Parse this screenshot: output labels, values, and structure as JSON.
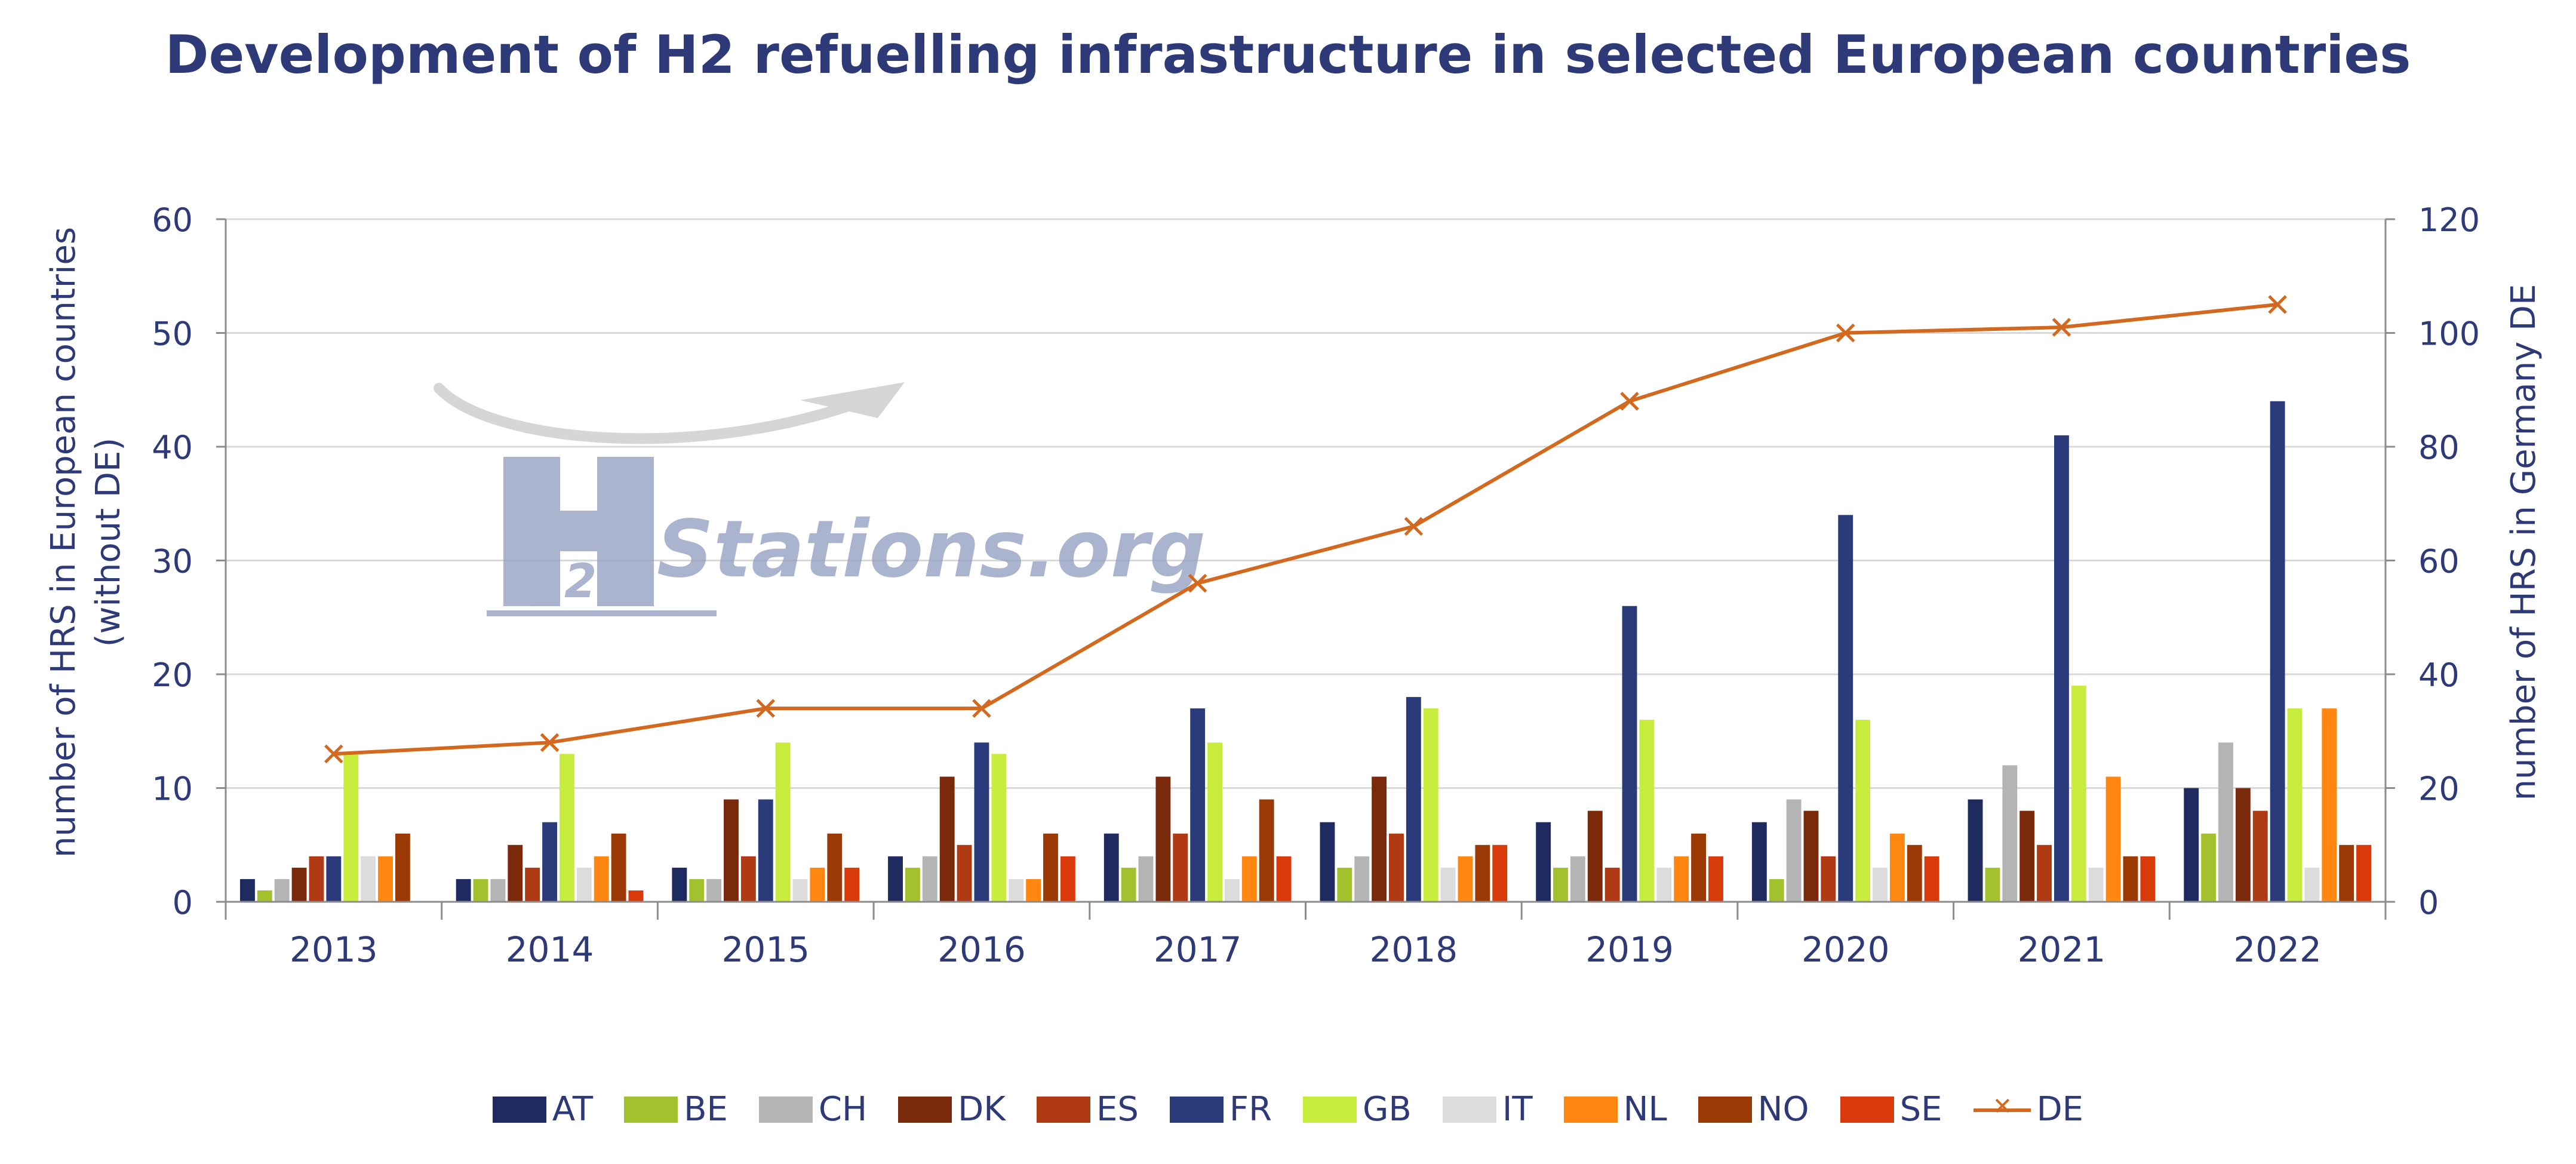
{
  "chart_data": {
    "type": "bar",
    "title": "Development of H2 refuelling infrastructure in selected European countries",
    "categories": [
      "2013",
      "2014",
      "2015",
      "2016",
      "2017",
      "2018",
      "2019",
      "2020",
      "2021",
      "2022"
    ],
    "ylabel_left_line1": "number of HRS in European countries",
    "ylabel_left_line2": "(without DE)",
    "ylabel_right": "number of HRS in Germany DE",
    "ylim_left": [
      0,
      60
    ],
    "ylim_right": [
      0,
      120
    ],
    "yticks_left": [
      0,
      10,
      20,
      30,
      40,
      50,
      60
    ],
    "yticks_right": [
      0,
      20,
      40,
      60,
      80,
      100,
      120
    ],
    "grid": true,
    "legend_position": "bottom",
    "series": [
      {
        "name": "AT",
        "color": "#1f2a60",
        "values": [
          2,
          2,
          3,
          4,
          6,
          7,
          7,
          7,
          9,
          10
        ]
      },
      {
        "name": "BE",
        "color": "#a3c12c",
        "values": [
          1,
          2,
          2,
          3,
          3,
          3,
          3,
          2,
          3,
          6
        ]
      },
      {
        "name": "CH",
        "color": "#b4b4b4",
        "values": [
          2,
          2,
          2,
          4,
          4,
          4,
          4,
          9,
          12,
          14
        ]
      },
      {
        "name": "DK",
        "color": "#7a2a0a",
        "values": [
          3,
          5,
          9,
          11,
          11,
          11,
          8,
          8,
          8,
          10
        ]
      },
      {
        "name": "ES",
        "color": "#b03a14",
        "values": [
          4,
          3,
          4,
          5,
          6,
          6,
          3,
          4,
          5,
          8
        ]
      },
      {
        "name": "FR",
        "color": "#2b3a7a",
        "values": [
          4,
          7,
          9,
          14,
          17,
          18,
          26,
          34,
          41,
          44
        ]
      },
      {
        "name": "GB",
        "color": "#c8ec3c",
        "values": [
          13,
          13,
          14,
          13,
          14,
          17,
          16,
          16,
          19,
          17
        ]
      },
      {
        "name": "IT",
        "color": "#dcdcdc",
        "values": [
          4,
          3,
          2,
          2,
          2,
          3,
          3,
          3,
          3,
          3
        ]
      },
      {
        "name": "NL",
        "color": "#ff8610",
        "values": [
          4,
          4,
          3,
          2,
          4,
          4,
          4,
          6,
          11,
          17
        ]
      },
      {
        "name": "NO",
        "color": "#9c3a06",
        "values": [
          6,
          6,
          6,
          6,
          9,
          5,
          6,
          5,
          4,
          5
        ]
      },
      {
        "name": "SE",
        "color": "#d83a0c",
        "values": [
          0,
          1,
          3,
          4,
          4,
          5,
          4,
          4,
          4,
          5
        ]
      },
      {
        "name": "DE",
        "type": "line",
        "axis": "right",
        "color": "#d2691e",
        "values": [
          26,
          28,
          34,
          34,
          56,
          66,
          88,
          100,
          101,
          105
        ]
      }
    ]
  },
  "watermark": {
    "letter": "H",
    "subscript": "2",
    "text": "Stations.org"
  }
}
